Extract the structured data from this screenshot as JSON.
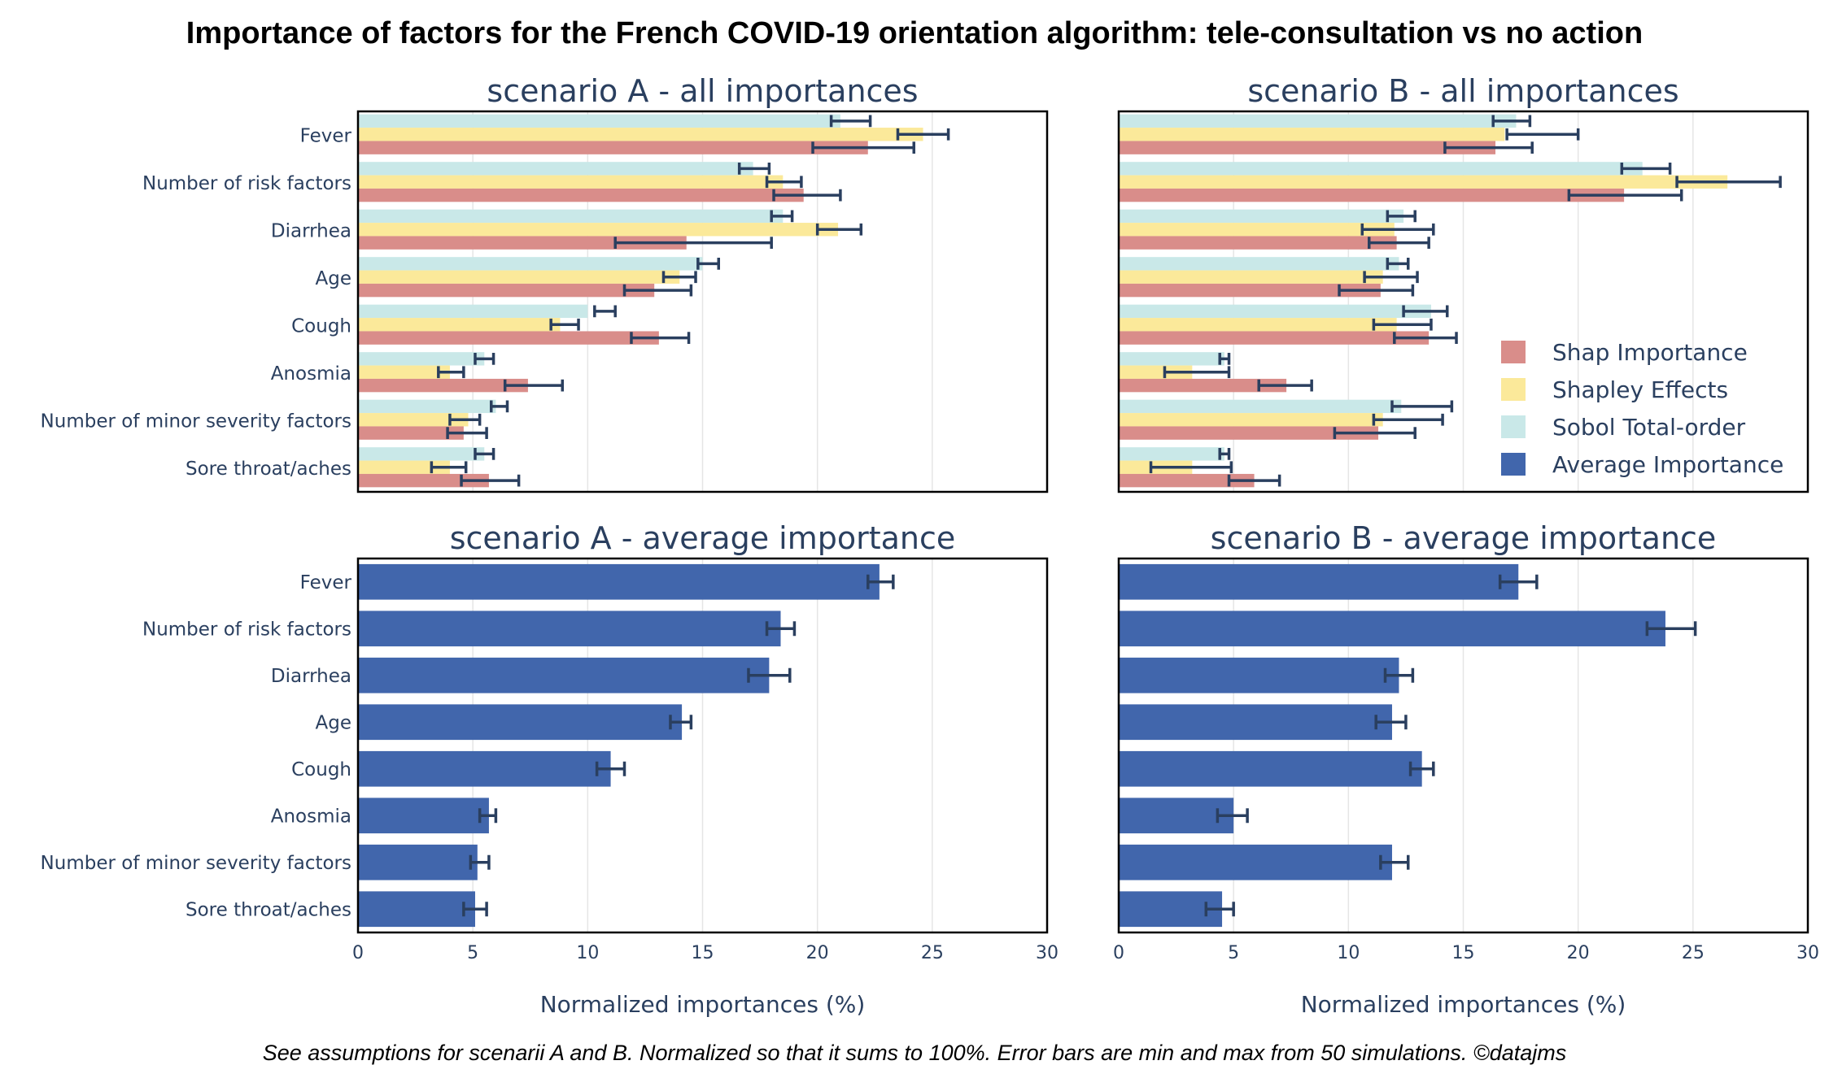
{
  "title": "Importance of factors for the French COVID-19 orientation algorithm: tele-consultation vs no action",
  "footnote": "See assumptions for scenarii A and B. Normalized so that it sums to 100%. Error bars are min and max from 50 simulations. ©datajms",
  "colors": {
    "shap": "#d98d8a",
    "shapley": "#fbe99a",
    "sobol": "#c9e8e8",
    "average": "#4166ac",
    "errorbar": "#2a3f5f",
    "text": "#2a3f5f",
    "grid": "#e5e5e5"
  },
  "chart_data": [
    {
      "id": "scenario-a-all",
      "type": "bar",
      "orientation": "horizontal",
      "title": "scenario A - all importances",
      "categories": [
        "Fever",
        "Number of risk factors",
        "Diarrhea",
        "Age",
        "Cough",
        "Anosmia",
        "Number of minor severity factors",
        "Sore throat/aches"
      ],
      "xlim": [
        0,
        30
      ],
      "xticks": [
        0,
        5,
        10,
        15,
        20,
        25,
        30
      ],
      "grid": true,
      "series": [
        {
          "name": "Sobol Total-order",
          "color_key": "sobol",
          "values": [
            21.0,
            17.2,
            18.5,
            15.0,
            10.0,
            5.5,
            6.0,
            5.5
          ],
          "err_min": [
            20.6,
            16.6,
            18.0,
            14.8,
            10.3,
            5.1,
            5.8,
            5.1
          ],
          "err_max": [
            22.3,
            17.9,
            18.9,
            15.7,
            11.2,
            5.9,
            6.5,
            5.9
          ]
        },
        {
          "name": "Shapley Effects",
          "color_key": "shapley",
          "values": [
            24.6,
            18.5,
            20.9,
            14.0,
            8.8,
            4.0,
            4.8,
            4.0
          ],
          "err_min": [
            23.5,
            17.8,
            20.0,
            13.3,
            8.4,
            3.5,
            4.0,
            3.2
          ],
          "err_max": [
            25.7,
            19.3,
            21.9,
            14.7,
            9.6,
            4.6,
            5.3,
            4.7
          ]
        },
        {
          "name": "Shap Importance",
          "color_key": "shap",
          "values": [
            22.2,
            19.4,
            14.3,
            12.9,
            13.1,
            7.4,
            4.6,
            5.7
          ],
          "err_min": [
            19.8,
            18.1,
            11.2,
            11.6,
            11.9,
            6.4,
            3.9,
            4.5
          ],
          "err_max": [
            24.2,
            21.0,
            18.0,
            14.5,
            14.4,
            8.9,
            5.6,
            7.0
          ]
        }
      ]
    },
    {
      "id": "scenario-b-all",
      "type": "bar",
      "orientation": "horizontal",
      "title": "scenario B - all importances",
      "categories": [
        "Fever",
        "Number of risk factors",
        "Diarrhea",
        "Age",
        "Cough",
        "Anosmia",
        "Number of minor severity factors",
        "Sore throat/aches"
      ],
      "xlim": [
        0,
        30
      ],
      "xticks": [
        0,
        5,
        10,
        15,
        20,
        25,
        30
      ],
      "grid": true,
      "legend_position": "lower-right",
      "series": [
        {
          "name": "Sobol Total-order",
          "color_key": "sobol",
          "values": [
            17.3,
            22.8,
            12.4,
            12.2,
            13.6,
            4.6,
            12.3,
            4.6
          ],
          "err_min": [
            16.3,
            21.9,
            11.7,
            11.7,
            12.4,
            4.4,
            11.9,
            4.4
          ],
          "err_max": [
            17.9,
            24.0,
            12.9,
            12.6,
            14.3,
            4.8,
            14.5,
            4.8
          ]
        },
        {
          "name": "Shapley Effects",
          "color_key": "shapley",
          "values": [
            16.8,
            26.5,
            12.0,
            11.5,
            12.1,
            3.2,
            11.5,
            3.2
          ],
          "err_min": [
            16.9,
            24.3,
            10.6,
            10.7,
            11.1,
            2.0,
            11.1,
            1.4
          ],
          "err_max": [
            20.0,
            28.8,
            13.7,
            13.0,
            13.6,
            4.8,
            14.1,
            4.9
          ]
        },
        {
          "name": "Shap Importance",
          "color_key": "shap",
          "values": [
            16.4,
            22.0,
            12.1,
            11.4,
            13.5,
            7.3,
            11.3,
            5.9
          ],
          "err_min": [
            14.2,
            19.6,
            10.9,
            9.6,
            12.0,
            6.1,
            9.4,
            4.8
          ],
          "err_max": [
            18.0,
            24.5,
            13.5,
            12.8,
            14.7,
            8.4,
            12.9,
            7.0
          ]
        }
      ]
    },
    {
      "id": "scenario-a-avg",
      "type": "bar",
      "orientation": "horizontal",
      "title": "scenario A - average importance",
      "xlabel": "Normalized importances (%)",
      "categories": [
        "Fever",
        "Number of risk factors",
        "Diarrhea",
        "Age",
        "Cough",
        "Anosmia",
        "Number of minor severity factors",
        "Sore throat/aches"
      ],
      "xlim": [
        0,
        30
      ],
      "xticks": [
        0,
        5,
        10,
        15,
        20,
        25,
        30
      ],
      "grid": true,
      "series": [
        {
          "name": "Average Importance",
          "color_key": "average",
          "values": [
            22.7,
            18.4,
            17.9,
            14.1,
            11.0,
            5.7,
            5.2,
            5.1
          ],
          "err_min": [
            22.2,
            17.8,
            17.0,
            13.6,
            10.4,
            5.3,
            4.9,
            4.6
          ],
          "err_max": [
            23.3,
            19.0,
            18.8,
            14.5,
            11.6,
            6.0,
            5.7,
            5.6
          ]
        }
      ]
    },
    {
      "id": "scenario-b-avg",
      "type": "bar",
      "orientation": "horizontal",
      "title": "scenario B - average importance",
      "xlabel": "Normalized importances (%)",
      "categories": [
        "Fever",
        "Number of risk factors",
        "Diarrhea",
        "Age",
        "Cough",
        "Anosmia",
        "Number of minor severity factors",
        "Sore throat/aches"
      ],
      "xlim": [
        0,
        30
      ],
      "xticks": [
        0,
        5,
        10,
        15,
        20,
        25,
        30
      ],
      "grid": true,
      "series": [
        {
          "name": "Average Importance",
          "color_key": "average",
          "values": [
            17.4,
            23.8,
            12.2,
            11.9,
            13.2,
            5.0,
            11.9,
            4.5
          ],
          "err_min": [
            16.6,
            23.0,
            11.6,
            11.2,
            12.7,
            4.3,
            11.4,
            3.8
          ],
          "err_max": [
            18.2,
            25.1,
            12.8,
            12.5,
            13.7,
            5.6,
            12.6,
            5.0
          ]
        }
      ]
    }
  ],
  "legend": [
    {
      "label": "Shap Importance",
      "color_key": "shap"
    },
    {
      "label": "Shapley Effects",
      "color_key": "shapley"
    },
    {
      "label": "Sobol Total-order",
      "color_key": "sobol"
    },
    {
      "label": "Average Importance",
      "color_key": "average"
    }
  ]
}
